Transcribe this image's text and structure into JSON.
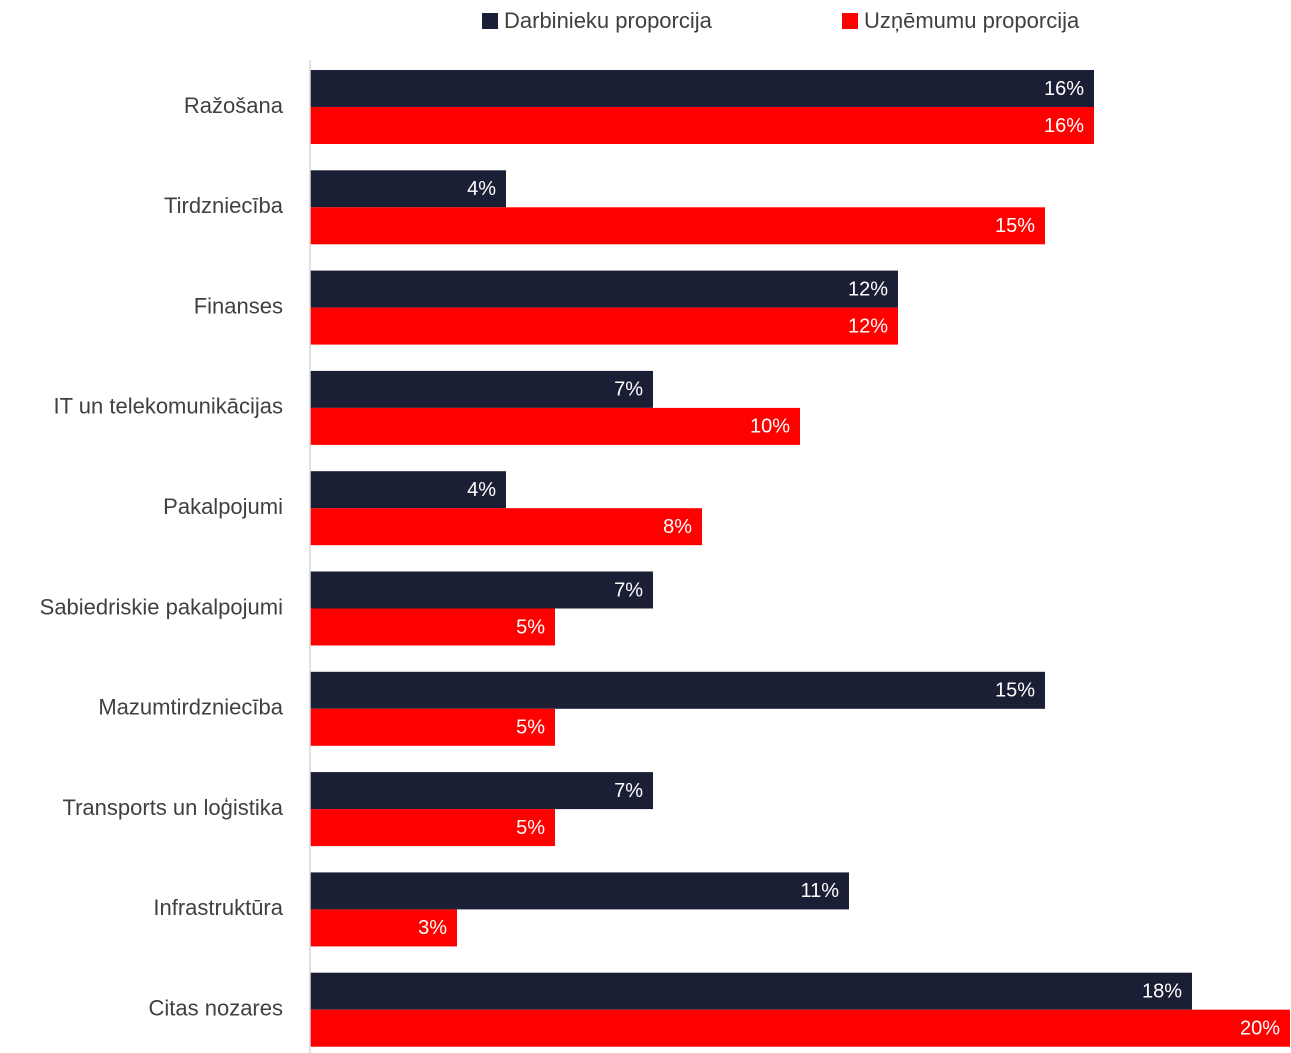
{
  "chart_data": {
    "type": "bar",
    "orientation": "horizontal",
    "categories": [
      "Ražošana",
      "Tirdzniecība",
      "Finanses",
      "IT un telekomunikācijas",
      "Pakalpojumi",
      "Sabiedriskie pakalpojumi",
      "Mazumtirdzniecība",
      "Transports un loģistika",
      "Infrastruktūra",
      "Citas nozares"
    ],
    "series": [
      {
        "name": "Darbinieku proporcija",
        "color": "#1b1f35",
        "values": [
          16,
          4,
          12,
          7,
          4,
          7,
          15,
          7,
          11,
          18
        ],
        "labels": [
          "16%",
          "4%",
          "12%",
          "7%",
          "4%",
          "7%",
          "15%",
          "7%",
          "11%",
          "18%"
        ]
      },
      {
        "name": "Uzņēmumu proporcija",
        "color": "#ff0000",
        "values": [
          16,
          15,
          12,
          10,
          8,
          5,
          5,
          5,
          3,
          20
        ],
        "labels": [
          "16%",
          "15%",
          "12%",
          "10%",
          "8%",
          "5%",
          "5%",
          "5%",
          "3%",
          "20%"
        ]
      }
    ],
    "xlim": [
      0,
      20
    ],
    "grid": false,
    "legend_position": "top",
    "axis_color": "#d9d9d9"
  }
}
